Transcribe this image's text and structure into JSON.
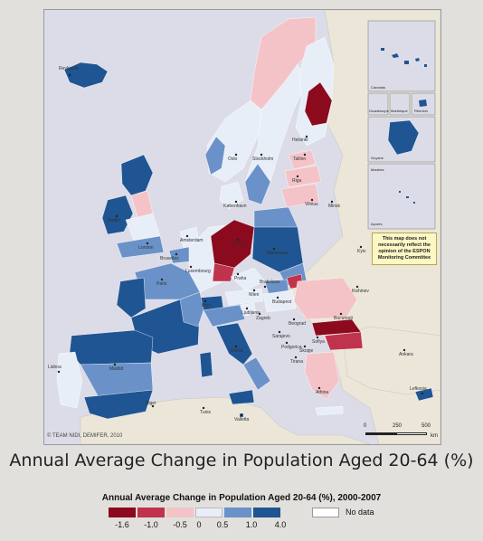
{
  "map": {
    "copyright": "© TEAM NIDI, DEMIFER, 2010",
    "disclaimer": "This map does not necessarily reflect the opinion of the ESPON Monitoring Committee",
    "scale": {
      "ticks": [
        "0",
        "250",
        "500"
      ],
      "unit": "km"
    },
    "insets": [
      "Canarias",
      "Guadeloupe",
      "Martinique",
      "Réunion",
      "Guyane",
      "Madeira",
      "Açores"
    ],
    "cities": [
      "Reykjavik",
      "Helsinki",
      "Tallinn",
      "Stockholm",
      "Oslo",
      "Riga",
      "Vilnius",
      "Minsk",
      "København",
      "Dublin",
      "London",
      "Amsterdam",
      "Berlin",
      "Warszawa",
      "Bruxelles",
      "Luxembourg",
      "Praha",
      "Paris",
      "Kyiv",
      "Kishinev",
      "Bratislava",
      "Wien",
      "Budapest",
      "Bern",
      "Ljubljana",
      "Zagreb",
      "Beograd",
      "Bucuresti",
      "Sarajevo",
      "Podgorica",
      "Sofiya",
      "Skopje",
      "Tirana",
      "Ankara",
      "Madrid",
      "Lisboa",
      "Roma",
      "Athina",
      "Valletta",
      "Alger",
      "Tunis",
      "Lefkosia"
    ]
  },
  "colors": {
    "class_1": "#8b0a1e",
    "class_2": "#c0334d",
    "class_3": "#f4c3c8",
    "class_4": "#e8eef8",
    "class_5": "#6a92c8",
    "class_6": "#1f5592",
    "no_data": "#ffffff",
    "outside": "#ebe6d8",
    "sea": "#dcdce8"
  },
  "title": "Annual Average Change in Population Aged 20-64 (%)",
  "legend": {
    "title": "Annual Average Change in Population Aged 20-64 (%), 2000-2007",
    "breaks": [
      "-1.6",
      "-1.0",
      "-0.5",
      "0",
      "0.5",
      "1.0",
      "4.0"
    ],
    "no_data_label": "No data"
  }
}
